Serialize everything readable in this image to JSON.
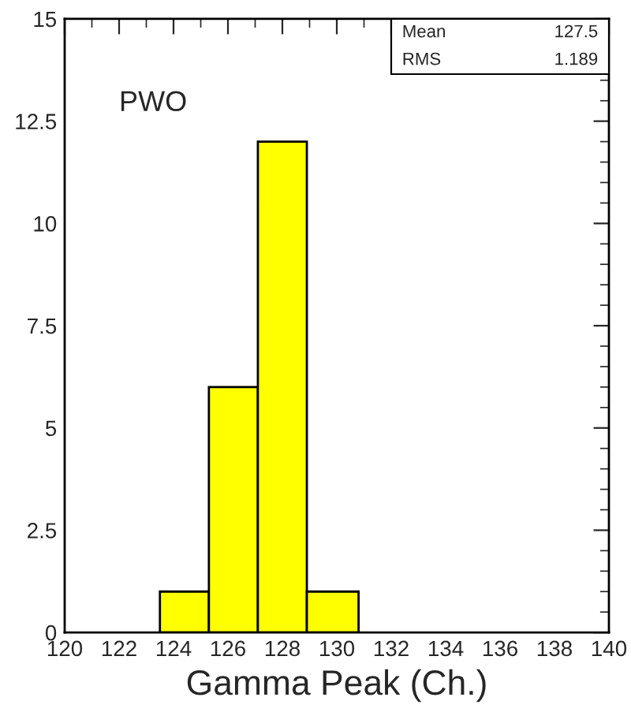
{
  "chart_data": {
    "type": "histogram",
    "xlabel": "Gamma Peak (Ch.)",
    "bins": [
      123.5,
      125.3,
      127.1,
      128.9,
      130.8
    ],
    "values": [
      1,
      6,
      12,
      1
    ],
    "color": "#ffff00",
    "xlim": [
      120,
      140
    ],
    "xticks": [
      120,
      122,
      124,
      126,
      128,
      130,
      132,
      134,
      136,
      138,
      140
    ],
    "ylim": [
      0,
      15
    ],
    "yticks": [
      0,
      2.5,
      5,
      7.5,
      10,
      12.5,
      15
    ],
    "grid": false,
    "annotations": [
      "PWO",
      "Mean",
      "127.5",
      "RMS",
      "1.189"
    ]
  }
}
